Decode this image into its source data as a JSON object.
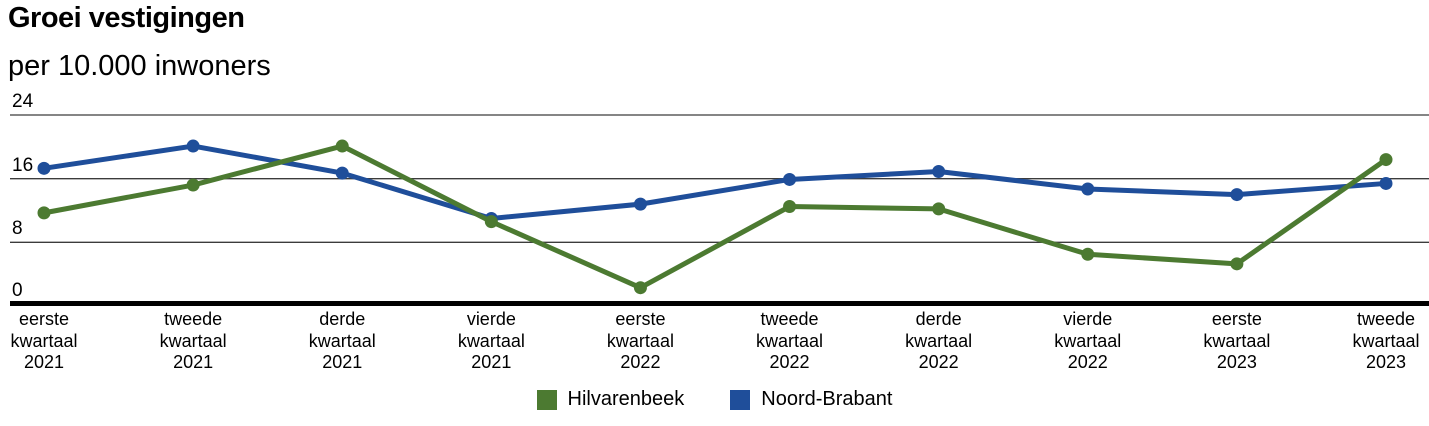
{
  "title": "Groei vestigingen",
  "subtitle": "per 10.000 inwoners",
  "colors": {
    "hilvarenbeek": "#4c7a31",
    "noord_brabant": "#1f4e9a",
    "gridline": "#3c3c3c",
    "axis": "#000000",
    "text": "#000000",
    "background": "#ffffff"
  },
  "chart_data": {
    "type": "line",
    "title": "Groei vestigingen",
    "subtitle": "per 10.000 inwoners",
    "categories": [
      "eerste kwartaal 2021",
      "tweede kwartaal 2021",
      "derde kwartaal 2021",
      "vierde kwartaal 2021",
      "eerste kwartaal 2022",
      "tweede kwartaal 2022",
      "derde kwartaal 2022",
      "vierde kwartaal 2022",
      "eerste kwartaal 2023",
      "tweede kwartaal 2023"
    ],
    "series": [
      {
        "name": "Hilvarenbeek",
        "color": "#4c7a31",
        "values": [
          11.7,
          15.2,
          20.1,
          10.6,
          2.3,
          12.5,
          12.2,
          6.5,
          5.3,
          18.4
        ]
      },
      {
        "name": "Noord-Brabant",
        "color": "#1f4e9a",
        "values": [
          17.3,
          20.1,
          16.7,
          11.0,
          12.8,
          15.9,
          16.9,
          14.7,
          14.0,
          15.4
        ]
      }
    ],
    "ylim": [
      0,
      24
    ],
    "yticks": [
      0,
      8,
      16,
      24
    ],
    "grid": true,
    "legend_position": "bottom"
  }
}
